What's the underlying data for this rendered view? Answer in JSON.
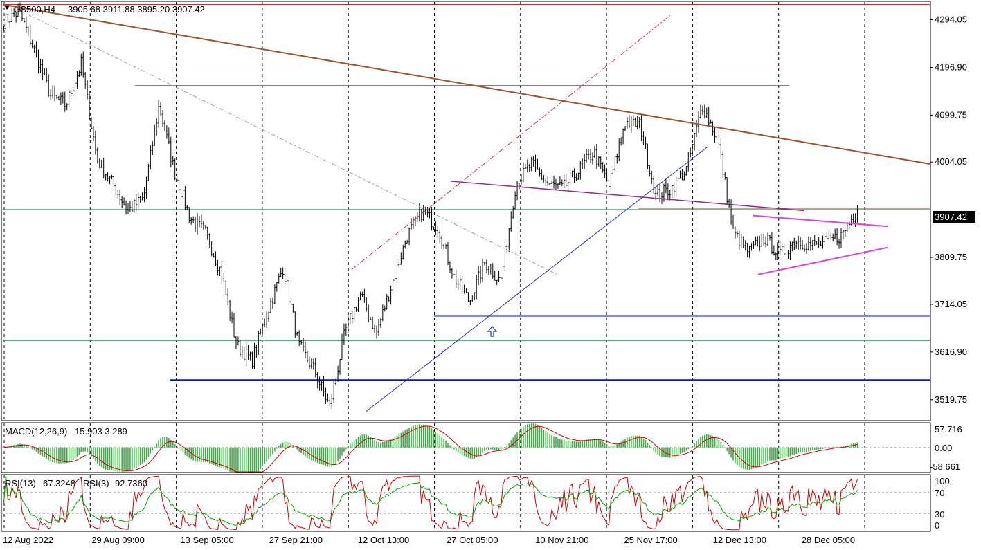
{
  "header": {
    "symbol": "US500,H4",
    "ohlc": "3905.68 3911.88 3895.20 3907.42"
  },
  "current_price": "3907.42",
  "colors": {
    "candle": "#000000",
    "trend_main": "#a0522d",
    "channel": "#1f2fcc",
    "triangle": "#e040e0",
    "support": "#0a1aa8",
    "macd_hist": "#3cb043",
    "macd_signal": "#cc0000",
    "rsi13": "#cc0000",
    "rsi3": "#00a000",
    "grid": "#000000"
  },
  "chart_data": [
    {
      "type": "candlestick",
      "title": "US500,H4",
      "x_ticks": [
        "12 Aug 2022",
        "29 Aug 09:00",
        "13 Sep 05:00",
        "27 Sep 21:00",
        "12 Oct 13:00",
        "27 Oct 05:00",
        "10 Nov 21:00",
        "25 Nov 17:00",
        "12 Dec 13:00",
        "28 Dec 05:00"
      ],
      "y_ticks": [
        "4294.05",
        "4196.90",
        "4099.75",
        "4004.05",
        "3907.42",
        "3809.75",
        "3714.05",
        "3616.90",
        "3519.75"
      ],
      "ylim": [
        3480,
        4330
      ],
      "close_path": [
        {
          "d": "12 Aug",
          "v": 4290
        },
        {
          "d": "16 Aug",
          "v": 4310
        },
        {
          "d": "19 Aug",
          "v": 4230
        },
        {
          "d": "23 Aug",
          "v": 4140
        },
        {
          "d": "26 Aug",
          "v": 4120
        },
        {
          "d": "29 Aug",
          "v": 4205
        },
        {
          "d": "31 Aug",
          "v": 4010
        },
        {
          "d": "2 Sep",
          "v": 3960
        },
        {
          "d": "6 Sep",
          "v": 3905
        },
        {
          "d": "8 Sep",
          "v": 3930
        },
        {
          "d": "12 Sep",
          "v": 4120
        },
        {
          "d": "13 Sep",
          "v": 3985
        },
        {
          "d": "16 Sep",
          "v": 3890
        },
        {
          "d": "20 Sep",
          "v": 3860
        },
        {
          "d": "23 Sep",
          "v": 3780
        },
        {
          "d": "27 Sep",
          "v": 3630
        },
        {
          "d": "29 Sep",
          "v": 3600
        },
        {
          "d": "3 Oct",
          "v": 3700
        },
        {
          "d": "5 Oct",
          "v": 3790
        },
        {
          "d": "7 Oct",
          "v": 3630
        },
        {
          "d": "11 Oct",
          "v": 3580
        },
        {
          "d": "13 Oct",
          "v": 3505
        },
        {
          "d": "14 Oct",
          "v": 3660
        },
        {
          "d": "18 Oct",
          "v": 3735
        },
        {
          "d": "20 Oct",
          "v": 3655
        },
        {
          "d": "21 Oct",
          "v": 3755
        },
        {
          "d": "25 Oct",
          "v": 3855
        },
        {
          "d": "27 Oct",
          "v": 3905
        },
        {
          "d": "31 Oct",
          "v": 3870
        },
        {
          "d": "2 Nov",
          "v": 3770
        },
        {
          "d": "3 Nov",
          "v": 3720
        },
        {
          "d": "7 Nov",
          "v": 3800
        },
        {
          "d": "9 Nov",
          "v": 3760
        },
        {
          "d": "10 Nov",
          "v": 3960
        },
        {
          "d": "14 Nov",
          "v": 4000
        },
        {
          "d": "16 Nov",
          "v": 3960
        },
        {
          "d": "18 Nov",
          "v": 3950
        },
        {
          "d": "22 Nov",
          "v": 3985
        },
        {
          "d": "24 Nov",
          "v": 4025
        },
        {
          "d": "28 Nov",
          "v": 3955
        },
        {
          "d": "30 Nov",
          "v": 4085
        },
        {
          "d": "2 Dec",
          "v": 4080
        },
        {
          "d": "6 Dec",
          "v": 3935
        },
        {
          "d": "8 Dec",
          "v": 3950
        },
        {
          "d": "12 Dec",
          "v": 3990
        },
        {
          "d": "13 Dec",
          "v": 4120
        },
        {
          "d": "14 Dec",
          "v": 4050
        },
        {
          "d": "16 Dec",
          "v": 3860
        },
        {
          "d": "20 Dec",
          "v": 3820
        },
        {
          "d": "22 Dec",
          "v": 3850
        },
        {
          "d": "23 Dec",
          "v": 3815
        },
        {
          "d": "27 Dec",
          "v": 3845
        },
        {
          "d": "29 Dec",
          "v": 3835
        },
        {
          "d": "30 Dec",
          "v": 3840
        },
        {
          "d": "3 Jan",
          "v": 3855
        },
        {
          "d": "4 Jan",
          "v": 3907.42
        }
      ],
      "lines": [
        {
          "kind": "trend",
          "color": "trend_main",
          "from": [
            0,
            4325
          ],
          "to": [
            1,
            4000
          ]
        },
        {
          "kind": "horizontal",
          "price": 4325
        },
        {
          "kind": "horizontal",
          "price": 4160
        },
        {
          "kind": "horizontal",
          "price": 3907.42
        },
        {
          "kind": "horizontal",
          "price": 3690
        },
        {
          "kind": "horizontal",
          "price": 3640
        },
        {
          "kind": "horizontal",
          "price": 3560
        }
      ]
    },
    {
      "type": "histogram",
      "title": "MACD(12,26,9)",
      "values_label": "15.903 3.289",
      "y_ticks": [
        "57.716",
        "0.00",
        "-58.661"
      ],
      "ylim": [
        -58.661,
        57.716
      ]
    },
    {
      "type": "line",
      "title": "RSI(13)",
      "values_label": "67.3248",
      "second_title": "RSI(3)",
      "second_value": "92.7360",
      "y_ticks": [
        "100",
        "70",
        "30",
        "0"
      ],
      "ylim": [
        0,
        100
      ]
    }
  ]
}
